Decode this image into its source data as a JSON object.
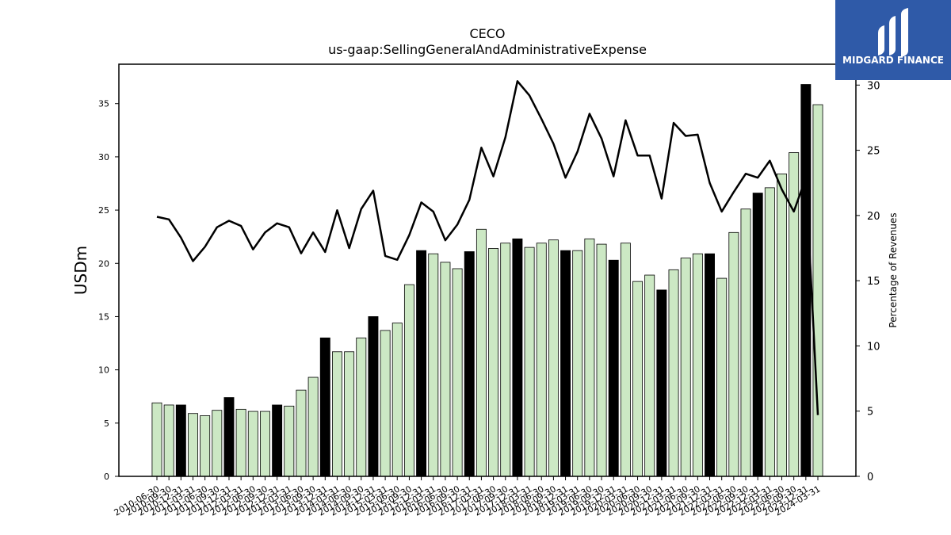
{
  "chart_data": {
    "type": "bar",
    "title": "CECO",
    "subtitle": "us-gaap:SellingGeneralAndAdministrativeExpense",
    "ylabel": "USDm",
    "y2label": "Percentage of Revenues",
    "ylim": [
      0,
      38.7
    ],
    "y2lim": [
      0,
      31.6
    ],
    "yticks": [
      0,
      5,
      10,
      15,
      20,
      25,
      30,
      35
    ],
    "y2ticks": [
      0,
      5,
      10,
      15,
      20,
      25,
      30
    ],
    "bar_color": "#cce8c4",
    "highlight_color": "#000000",
    "line_color": "#000000",
    "categories": [
      "2010-06-30",
      "2010-09-30",
      "2010-12-31",
      "2011-03-31",
      "2011-06-30",
      "2011-09-30",
      "2011-12-31",
      "2012-03-31",
      "2012-06-30",
      "2012-09-30",
      "2012-12-31",
      "2013-03-31",
      "2013-06-30",
      "2013-09-30",
      "2013-12-31",
      "2014-03-31",
      "2014-06-30",
      "2014-09-30",
      "2014-12-31",
      "2015-03-31",
      "2015-06-30",
      "2015-09-30",
      "2015-12-31",
      "2016-03-31",
      "2016-06-30",
      "2016-09-30",
      "2016-12-31",
      "2017-03-31",
      "2017-06-30",
      "2017-09-30",
      "2017-12-31",
      "2018-03-31",
      "2018-06-30",
      "2018-09-30",
      "2018-12-31",
      "2019-03-31",
      "2019-06-30",
      "2019-09-30",
      "2019-12-31",
      "2020-03-31",
      "2020-06-30",
      "2020-09-30",
      "2020-12-31",
      "2021-03-31",
      "2021-06-30",
      "2021-09-30",
      "2021-12-31",
      "2022-03-31",
      "2022-06-30",
      "2022-09-30",
      "2022-12-31",
      "2023-03-31",
      "2023-06-30",
      "2023-09-30",
      "2023-12-31",
      "2024-03-31"
    ],
    "tick_labels": [
      "2010-06-30",
      "2010-09-30",
      "2010-12-31",
      "2011-03-31",
      "2011-06-30",
      "2011-09-30",
      "2011-12-31",
      "2012-03-31",
      "2012-06-30",
      "2012-09-30",
      "2012-12-31",
      "2013-03-31",
      "2013-06-30",
      "2013-09-30",
      "2013-12-31",
      "2014-03-31",
      "2014-06-30",
      "2014-09-30",
      "2014-12-31",
      "2015-03-31",
      "2015-06-30",
      "2015-09-30",
      "2015-12-31",
      "2016-03-31",
      "2016-06-30",
      "2016-09-30",
      "2016-12-31",
      "2017-03-31",
      "2017-06-30",
      "2017-09-30",
      "2017-12-31",
      "2018-03-31",
      "2018-06-30",
      "2018-09-30",
      "2018-12-31",
      "2019-03-31",
      "2019-06-30",
      "2019-09-30",
      "2019-12-31",
      "2020-03-31",
      "2020-06-30",
      "2020-09-30",
      "2020-12-31",
      "2021-03-31",
      "2021-06-30",
      "2021-09-30",
      "2021-12-31",
      "2022-03-31",
      "2022-06-30",
      "2022-09-30",
      "2022-12-31",
      "2023-03-31",
      "2023-06-30",
      "2023-09-30",
      "2023-12-31",
      "2024-03-31"
    ],
    "series": [
      {
        "axis": "left",
        "kind": "bar",
        "values": [
          6.9,
          6.7,
          6.7,
          5.9,
          5.7,
          6.2,
          7.4,
          6.3,
          6.1,
          6.1,
          6.7,
          6.6,
          8.1,
          9.3,
          13.0,
          11.7,
          11.7,
          13.0,
          15.0,
          13.7,
          14.4,
          18.0,
          21.2,
          20.9,
          20.1,
          19.5,
          21.1,
          23.2,
          21.4,
          21.9,
          22.3,
          21.5,
          21.9,
          22.2,
          21.2,
          21.2,
          22.3,
          21.8,
          20.3,
          21.9,
          18.3,
          18.9,
          17.5,
          19.4,
          20.5,
          20.9,
          20.9,
          18.6,
          22.9,
          25.1,
          26.6,
          27.1,
          28.4,
          30.4,
          36.8,
          34.9
        ],
        "highlight": [
          false,
          false,
          true,
          false,
          false,
          false,
          true,
          false,
          false,
          false,
          true,
          false,
          false,
          false,
          true,
          false,
          false,
          false,
          true,
          false,
          false,
          false,
          true,
          false,
          false,
          false,
          true,
          false,
          false,
          false,
          true,
          false,
          false,
          false,
          true,
          false,
          false,
          false,
          true,
          false,
          false,
          false,
          true,
          false,
          false,
          false,
          true,
          false,
          false,
          false,
          true,
          false,
          false,
          false,
          true,
          false
        ]
      },
      {
        "axis": "right",
        "kind": "line",
        "values": [
          19.9,
          19.7,
          18.3,
          16.5,
          17.6,
          19.1,
          19.6,
          19.2,
          17.4,
          18.7,
          19.4,
          19.1,
          17.1,
          18.7,
          17.2,
          20.4,
          17.5,
          20.5,
          21.9,
          16.9,
          16.6,
          18.5,
          21.0,
          20.3,
          18.1,
          19.3,
          21.2,
          25.2,
          23.0,
          26.0,
          30.3,
          29.2,
          27.4,
          25.5,
          22.9,
          24.9,
          27.8,
          25.9,
          23.0,
          27.3,
          24.6,
          24.6,
          21.3,
          27.1,
          26.1,
          26.2,
          22.5,
          20.3,
          21.8,
          23.2,
          22.9,
          24.2,
          22.0,
          20.3,
          22.9,
          4.7
        ]
      }
    ],
    "legend": "none",
    "grid": false
  },
  "brand": {
    "name": "MIDGARD FINANCE",
    "bg_color": "#2f5aa8"
  }
}
